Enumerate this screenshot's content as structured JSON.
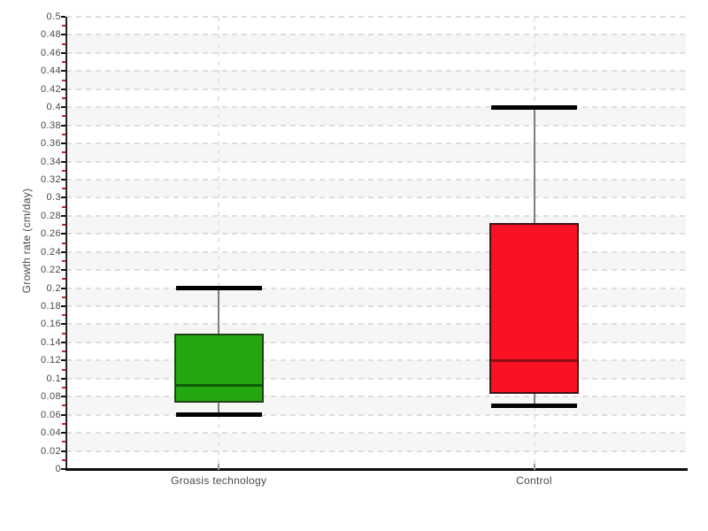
{
  "chart_data": {
    "type": "boxplot",
    "title": "",
    "xlabel": "",
    "ylabel": "Growth rate (cm/day)",
    "categories": [
      "Groasis technology",
      "Control"
    ],
    "series": [
      {
        "name": "Groasis technology",
        "min": 0.06,
        "q1": 0.073,
        "median": 0.093,
        "q3": 0.15,
        "max": 0.2,
        "fill_color": "#23a80f",
        "border_color": "#1e4414",
        "median_color": "#0f5b07"
      },
      {
        "name": "Control",
        "min": 0.07,
        "q1": 0.083,
        "median": 0.12,
        "q3": 0.272,
        "max": 0.4,
        "fill_color": "#fa1123",
        "border_color": "#3f1216",
        "median_color": "#8e0d16"
      }
    ],
    "ylim": [
      0,
      0.5
    ],
    "y_tick_step": 0.02,
    "y_minor_tick_step": 0.01,
    "y_ticks": [
      "0",
      "0.02",
      "0.04",
      "0.06",
      "0.08",
      "0.1",
      "0.12",
      "0.14",
      "0.16",
      "0.18",
      "0.2",
      "0.22",
      "0.24",
      "0.26",
      "0.28",
      "0.3",
      "0.32",
      "0.34",
      "0.36",
      "0.38",
      "0.4",
      "0.42",
      "0.44",
      "0.46",
      "0.48",
      "0.5"
    ],
    "grid": "horizontal dashed gridlines each 0.02, dashed vertical line at each category, alternating row bands",
    "legend": "none",
    "colors": {
      "whisker_cap": "#000000",
      "whisker_stem": "#7d7d7d",
      "minor_tick": "#cc2222",
      "axis_line": "#111111",
      "axis_text": "#494949",
      "row_band": "#f6f6f6",
      "gridline": "#dedede"
    }
  }
}
